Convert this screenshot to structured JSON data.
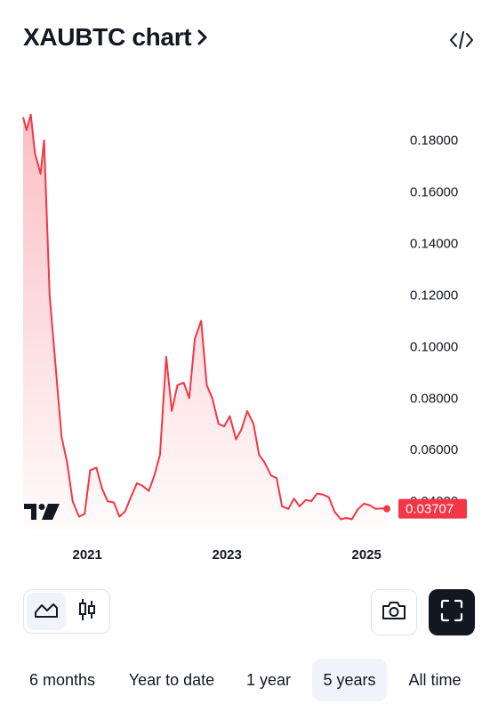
{
  "header": {
    "title": "XAUBTC chart",
    "chevron_icon": "chevron-right-icon",
    "embed_icon": "code-embed-icon"
  },
  "chart_data": {
    "type": "area",
    "x_tick_labels": [
      "2021",
      "2023",
      "2025"
    ],
    "y_tick_labels": [
      "0.18000",
      "0.16000",
      "0.14000",
      "0.12000",
      "0.10000",
      "0.08000",
      "0.06000",
      "0.04000"
    ],
    "ylim": [
      0.029,
      0.193
    ],
    "line_color": "#f23645",
    "last_value_label": "0.03707",
    "last_value": 0.03707,
    "x": [
      2020.08,
      2020.13,
      2020.19,
      2020.25,
      2020.33,
      2020.38,
      2020.46,
      2020.63,
      2020.71,
      2020.79,
      2020.88,
      2020.96,
      2021.04,
      2021.13,
      2021.21,
      2021.29,
      2021.38,
      2021.46,
      2021.54,
      2021.63,
      2021.71,
      2021.79,
      2021.88,
      2021.96,
      2022.04,
      2022.13,
      2022.21,
      2022.29,
      2022.38,
      2022.46,
      2022.54,
      2022.63,
      2022.71,
      2022.79,
      2022.88,
      2022.96,
      2023.04,
      2023.13,
      2023.21,
      2023.29,
      2023.38,
      2023.46,
      2023.54,
      2023.63,
      2023.71,
      2023.79,
      2023.88,
      2023.96,
      2024.04,
      2024.13,
      2024.21,
      2024.29,
      2024.38,
      2024.46,
      2024.54,
      2024.63,
      2024.71,
      2024.79,
      2024.88,
      2024.96,
      2025.04,
      2025.13,
      2025.21,
      2025.29
    ],
    "values": [
      0.189,
      0.184,
      0.19,
      0.175,
      0.167,
      0.18,
      0.12,
      0.065,
      0.055,
      0.04,
      0.034,
      0.035,
      0.052,
      0.053,
      0.045,
      0.04,
      0.0395,
      0.034,
      0.036,
      0.042,
      0.047,
      0.046,
      0.044,
      0.05,
      0.058,
      0.096,
      0.075,
      0.085,
      0.086,
      0.08,
      0.103,
      0.11,
      0.085,
      0.08,
      0.07,
      0.069,
      0.073,
      0.064,
      0.068,
      0.075,
      0.07,
      0.058,
      0.055,
      0.05,
      0.049,
      0.038,
      0.037,
      0.041,
      0.038,
      0.0405,
      0.04,
      0.043,
      0.0425,
      0.0415,
      0.036,
      0.033,
      0.0335,
      0.033,
      0.037,
      0.039,
      0.0385,
      0.037,
      0.0372,
      0.037
    ]
  },
  "chart_type_tools": {
    "area_icon": "area-chart-icon",
    "candles_icon": "candlestick-icon"
  },
  "actions": {
    "snapshot_icon": "camera-icon",
    "fullscreen_icon": "fullscreen-icon"
  },
  "ranges": [
    {
      "label": "6 months"
    },
    {
      "label": "Year to date"
    },
    {
      "label": "1 year"
    },
    {
      "label": "5 years",
      "active": true
    },
    {
      "label": "All time"
    }
  ]
}
